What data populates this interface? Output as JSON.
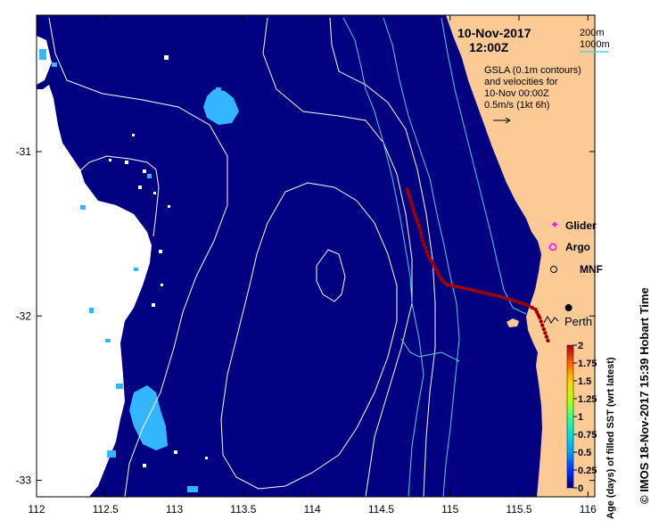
{
  "map": {
    "date": "10-Nov-2017",
    "time": "12:00Z",
    "contour_legend": {
      "shallow": "200m",
      "deep": "1000m"
    },
    "gsla_text": [
      "GSLA (0.1m contours)",
      "and velocities for",
      "10-Nov 00:00Z",
      "0.5m/s (1kt 6h)"
    ],
    "legend": {
      "glider": "Glider",
      "argo": "Argo",
      "mnf": "MNF"
    },
    "city": "Perth",
    "credit": "© IMOS 18-Nov-2017 15:39 Hobart Time",
    "x_ticks": [
      "112",
      "112.5",
      "113",
      "113.5",
      "114",
      "114.5",
      "115",
      "115.5",
      "116"
    ],
    "y_ticks": [
      "-31",
      "-32",
      "-33"
    ],
    "colorbar": {
      "title": "Age (days) of filled SST (wrt latest)",
      "ticks": [
        "2",
        "1.75",
        "1.5",
        "1.25",
        "1",
        "0.75",
        "0.5",
        "0.25",
        "0"
      ]
    },
    "colors": {
      "ocean": "#000080",
      "land": "#fccb95",
      "glider_track": "#a00000"
    }
  },
  "chart_data": {
    "type": "scatter",
    "xlim": [
      112,
      116.05
    ],
    "ylim": [
      -33.1,
      -30.17
    ],
    "x_ticks": [
      112,
      112.5,
      113,
      113.5,
      114,
      114.5,
      115,
      115.5,
      116
    ],
    "y_ticks": [
      -31,
      -32,
      -33
    ],
    "colorbar_range": [
      0,
      2
    ],
    "perth": {
      "lon": 115.86,
      "lat": -31.95
    },
    "glider_track": {
      "lon": [
        114.69,
        114.74,
        114.78,
        114.8,
        114.84,
        114.9,
        114.94,
        114.98,
        115.1,
        115.25,
        115.4,
        115.55,
        115.62,
        115.65,
        115.68,
        115.71
      ],
      "lat": [
        -31.23,
        -31.37,
        -31.47,
        -31.54,
        -31.63,
        -31.72,
        -31.78,
        -31.81,
        -31.83,
        -31.86,
        -31.89,
        -31.93,
        -31.96,
        -32.01,
        -32.08,
        -32.15
      ]
    }
  }
}
